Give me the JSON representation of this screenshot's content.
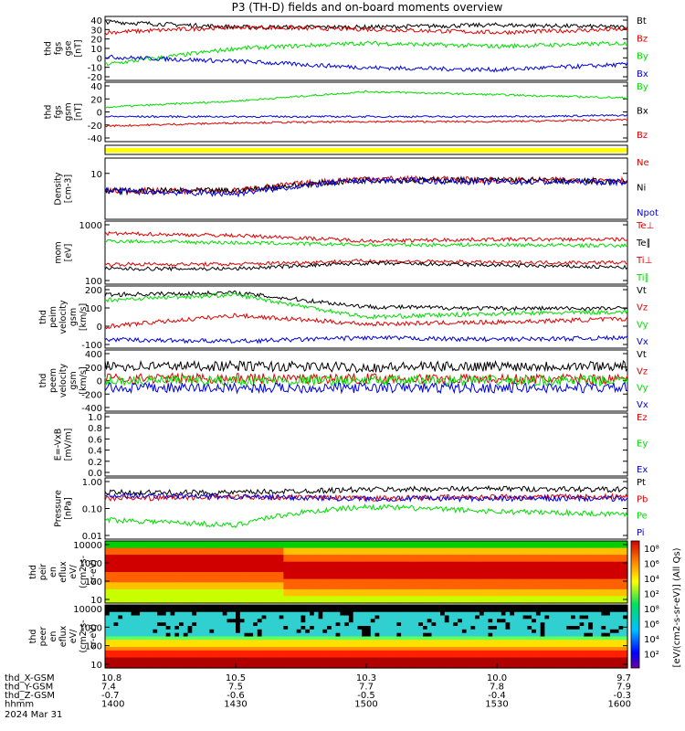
{
  "title": "P3 (TH-D) fields and on-board moments overview",
  "colors": {
    "black": "#000000",
    "red": "#e00000",
    "green": "#00dd00",
    "blue": "#0000e0",
    "yellow": "#ffff00"
  },
  "panels": [
    {
      "ylabel": [
        "thd",
        "fgs",
        "gse",
        "[nT]"
      ],
      "ticks": [
        "40",
        "30",
        "20",
        "10",
        "0",
        "-10",
        "-20"
      ],
      "legend": [
        {
          "label": "Bt",
          "color": "black"
        },
        {
          "label": "Bz",
          "color": "red"
        },
        {
          "label": "By",
          "color": "green"
        },
        {
          "label": "Bx",
          "color": "blue"
        }
      ]
    },
    {
      "ylabel": [
        "thd",
        "fgs",
        "gsm",
        "[nT]"
      ],
      "ticks": [
        "40",
        "20",
        "0",
        "-20",
        "-40"
      ],
      "legend": [
        {
          "label": "By",
          "color": "green"
        },
        {
          "label": "Bx",
          "color": "black"
        },
        {
          "label": "Bz",
          "color": "red"
        }
      ]
    },
    {
      "ylabel": [],
      "ticks": [],
      "legend": []
    },
    {
      "ylabel": [
        "Density",
        "[cm-3]"
      ],
      "ticks": [
        "10"
      ],
      "legend": [
        {
          "label": "Ne",
          "color": "red"
        },
        {
          "label": "Ni",
          "color": "black"
        },
        {
          "label": "Npot",
          "color": "blue"
        }
      ]
    },
    {
      "ylabel": [
        "mom",
        "[eV]"
      ],
      "ticks": [
        "1000",
        "100"
      ],
      "legend": [
        {
          "label": "Te⊥",
          "color": "red"
        },
        {
          "label": "Te∥",
          "color": "black"
        },
        {
          "label": "Ti⊥",
          "color": "red"
        },
        {
          "label": "Ti∥",
          "color": "green"
        }
      ]
    },
    {
      "ylabel": [
        "thd",
        "peim",
        "velocity",
        "gsm",
        "[km/s]"
      ],
      "ticks": [
        "200",
        "100",
        "0",
        "-100"
      ],
      "legend": [
        {
          "label": "Vt",
          "color": "black"
        },
        {
          "label": "Vz",
          "color": "red"
        },
        {
          "label": "Vy",
          "color": "green"
        },
        {
          "label": "Vx",
          "color": "blue"
        }
      ]
    },
    {
      "ylabel": [
        "thd",
        "peem",
        "velocity",
        "gsm",
        "[km/s]"
      ],
      "ticks": [
        "400",
        "200",
        "0",
        "-200",
        "-400"
      ],
      "legend": [
        {
          "label": "Vt",
          "color": "black"
        },
        {
          "label": "Vz",
          "color": "red"
        },
        {
          "label": "Vy",
          "color": "green"
        },
        {
          "label": "Vx",
          "color": "blue"
        }
      ]
    },
    {
      "ylabel": [
        "E=-VxB",
        "[mV/m]"
      ],
      "ticks": [
        "1.0",
        "0.8",
        "0.6",
        "0.4",
        "0.2",
        "0.0"
      ],
      "legend": [
        {
          "label": "Ez",
          "color": "red"
        },
        {
          "label": "Ey",
          "color": "green"
        },
        {
          "label": "Ex",
          "color": "blue"
        }
      ]
    },
    {
      "ylabel": [
        "Pressure",
        "[nPa]"
      ],
      "ticks": [
        "1.00",
        "0.10",
        "0.01"
      ],
      "legend": [
        {
          "label": "Pt",
          "color": "black"
        },
        {
          "label": "Pb",
          "color": "red"
        },
        {
          "label": "Pe",
          "color": "green"
        },
        {
          "label": "Pi",
          "color": "blue"
        }
      ]
    },
    {
      "ylabel": [
        "thd",
        "peir",
        "en",
        "eflux",
        "eV/",
        "(cm2-s-",
        "sr-eV)"
      ],
      "ticks": [
        "10000",
        "1000",
        "100",
        "10"
      ],
      "legend": []
    },
    {
      "ylabel": [
        "thd",
        "peer",
        "en",
        "eflux",
        "eV/",
        "(cm2-s-",
        "sr-eV)"
      ],
      "ticks": [
        "10000",
        "1000",
        "100",
        "10"
      ],
      "legend": []
    }
  ],
  "colorbar": {
    "label": "[eV/(cm2-s-sr-eV)] (All Qs)",
    "ticks": [
      "10⁸",
      "10⁶",
      "10⁴",
      "10²",
      "10⁸",
      "10⁶",
      "10⁴",
      "10²"
    ]
  },
  "xaxis": {
    "rows": [
      {
        "name": "thd_X-GSM",
        "values": [
          "10.8",
          "10.5",
          "10.3",
          "10.0",
          "9.7"
        ]
      },
      {
        "name": "thd_Y-GSM",
        "values": [
          "7.4",
          "7.5",
          "7.7",
          "7.8",
          "7.9"
        ]
      },
      {
        "name": "thd_Z-GSM",
        "values": [
          "-0.7",
          "-0.6",
          "-0.5",
          "-0.4",
          "-0.3"
        ]
      },
      {
        "name": "hhmm",
        "values": [
          "1400",
          "1430",
          "1500",
          "1530",
          "1600"
        ]
      }
    ],
    "date": "2024 Mar 31"
  },
  "chart_data": {
    "type": "line",
    "title": "P3 (TH-D) fields and on-board moments overview",
    "x": [
      "1400",
      "1430",
      "1500",
      "1530",
      "1600"
    ],
    "xlabel": "hhmm",
    "date": "2024 Mar 31",
    "panels": [
      {
        "ylabel": "thd fgs gse [nT]",
        "ylim": [
          -20,
          40
        ],
        "series": [
          {
            "name": "Bt",
            "values": [
              35,
              30,
              30,
              32,
              30
            ]
          },
          {
            "name": "Bz",
            "values": [
              25,
              30,
              28,
              25,
              28
            ]
          },
          {
            "name": "By",
            "values": [
              -5,
              10,
              15,
              12,
              15
            ]
          },
          {
            "name": "Bx",
            "values": [
              2,
              -2,
              -8,
              -10,
              -5
            ]
          }
        ]
      },
      {
        "ylabel": "thd fgs gsm [nT]",
        "ylim": [
          -50,
          45
        ],
        "series": [
          {
            "name": "By",
            "values": [
              5,
              15,
              30,
              25,
              20
            ]
          },
          {
            "name": "Bx",
            "values": [
              -10,
              -10,
              -10,
              -10,
              -8
            ]
          },
          {
            "name": "Bz",
            "values": [
              -25,
              -20,
              -18,
              -18,
              -15
            ]
          }
        ]
      },
      {
        "ylabel": "Density [cm-3]",
        "scale": "log",
        "series": [
          {
            "name": "Ne",
            "values": [
              8,
              8,
              14,
              13,
              13
            ]
          },
          {
            "name": "Ni",
            "values": [
              8,
              8,
              13,
              13,
              12
            ]
          },
          {
            "name": "Npot",
            "values": [
              8,
              7,
              13,
              12,
              12
            ]
          }
        ]
      },
      {
        "ylabel": "mom [eV]",
        "scale": "log",
        "series": [
          {
            "name": "Te⊥",
            "values": [
              70,
              70,
              90,
              80,
              80
            ]
          },
          {
            "name": "Te∥",
            "values": [
              50,
              50,
              75,
              65,
              55
            ]
          },
          {
            "name": "Ti⊥",
            "values": [
              700,
              600,
              400,
              450,
              450
            ]
          },
          {
            "name": "Ti∥",
            "values": [
              400,
              350,
              300,
              300,
              280
            ]
          }
        ]
      },
      {
        "ylabel": "thd peim velocity gsm [km/s]",
        "ylim": [
          -130,
          230
        ],
        "series": [
          {
            "name": "Vt",
            "values": [
              180,
              190,
              110,
              100,
              100
            ]
          },
          {
            "name": "Vz",
            "values": [
              -5,
              60,
              10,
              20,
              40
            ]
          },
          {
            "name": "Vy",
            "values": [
              150,
              180,
              50,
              70,
              80
            ]
          },
          {
            "name": "Vx",
            "values": [
              -80,
              -90,
              -70,
              -80,
              -70
            ]
          }
        ]
      },
      {
        "ylabel": "thd peem velocity gsm [km/s]",
        "ylim": [
          -420,
          420
        ],
        "series": [
          {
            "name": "Vt",
            "values": [
              200,
              200,
              180,
              200,
              200
            ]
          },
          {
            "name": "Vz",
            "values": [
              30,
              30,
              30,
              20,
              20
            ]
          },
          {
            "name": "Vy",
            "values": [
              0,
              0,
              0,
              0,
              0
            ]
          },
          {
            "name": "Vx",
            "values": [
              -100,
              -100,
              -100,
              -100,
              -100
            ]
          }
        ]
      },
      {
        "ylabel": "E=-VxB [mV/m]",
        "ylim": [
          0,
          1
        ],
        "series": []
      },
      {
        "ylabel": "Pressure [nPa]",
        "scale": "log",
        "series": [
          {
            "name": "Pt",
            "values": [
              0.5,
              0.5,
              0.65,
              0.7,
              0.65
            ]
          },
          {
            "name": "Pb",
            "values": [
              0.3,
              0.35,
              0.3,
              0.35,
              0.35
            ]
          },
          {
            "name": "Pe",
            "values": [
              0.05,
              0.03,
              0.15,
              0.1,
              0.08
            ]
          },
          {
            "name": "Pi",
            "values": [
              0.4,
              0.35,
              0.3,
              0.3,
              0.3
            ]
          }
        ]
      }
    ]
  }
}
